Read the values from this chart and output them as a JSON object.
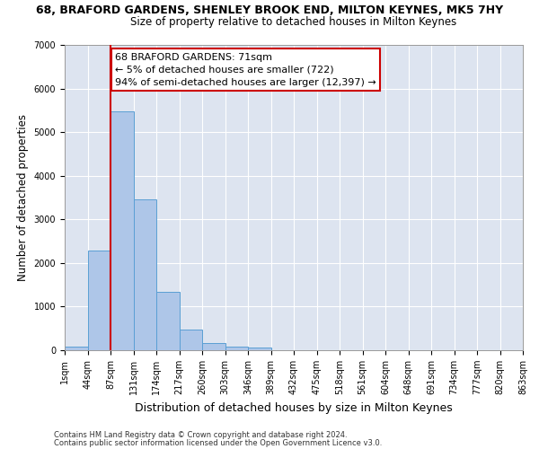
{
  "title": "68, BRAFORD GARDENS, SHENLEY BROOK END, MILTON KEYNES, MK5 7HY",
  "subtitle": "Size of property relative to detached houses in Milton Keynes",
  "xlabel": "Distribution of detached houses by size in Milton Keynes",
  "ylabel": "Number of detached properties",
  "bar_values": [
    80,
    2280,
    5470,
    3450,
    1330,
    470,
    160,
    90,
    55,
    0,
    0,
    0,
    0,
    0,
    0,
    0,
    0,
    0,
    0,
    0
  ],
  "bar_labels": [
    "1sqm",
    "44sqm",
    "87sqm",
    "131sqm",
    "174sqm",
    "217sqm",
    "260sqm",
    "303sqm",
    "346sqm",
    "389sqm",
    "432sqm",
    "475sqm",
    "518sqm",
    "561sqm",
    "604sqm",
    "648sqm",
    "691sqm",
    "734sqm",
    "777sqm",
    "820sqm",
    "863sqm"
  ],
  "bar_color": "#aec6e8",
  "bar_edge_color": "#5a9fd4",
  "background_color": "#dde4f0",
  "grid_color": "#ffffff",
  "red_line_x": 1.5,
  "annotation_text": "68 BRAFORD GARDENS: 71sqm\n← 5% of detached houses are smaller (722)\n94% of semi-detached houses are larger (12,397) →",
  "annotation_box_color": "#ffffff",
  "annotation_box_edge": "#cc0000",
  "footer1": "Contains HM Land Registry data © Crown copyright and database right 2024.",
  "footer2": "Contains public sector information licensed under the Open Government Licence v3.0.",
  "ylim": [
    0,
    7000
  ],
  "yticks": [
    0,
    1000,
    2000,
    3000,
    4000,
    5000,
    6000,
    7000
  ],
  "title_fontsize": 9.0,
  "subtitle_fontsize": 8.5,
  "ylabel_fontsize": 8.5,
  "xlabel_fontsize": 9.0,
  "tick_fontsize": 7.0,
  "annot_fontsize": 8.0,
  "footer_fontsize": 6.0
}
